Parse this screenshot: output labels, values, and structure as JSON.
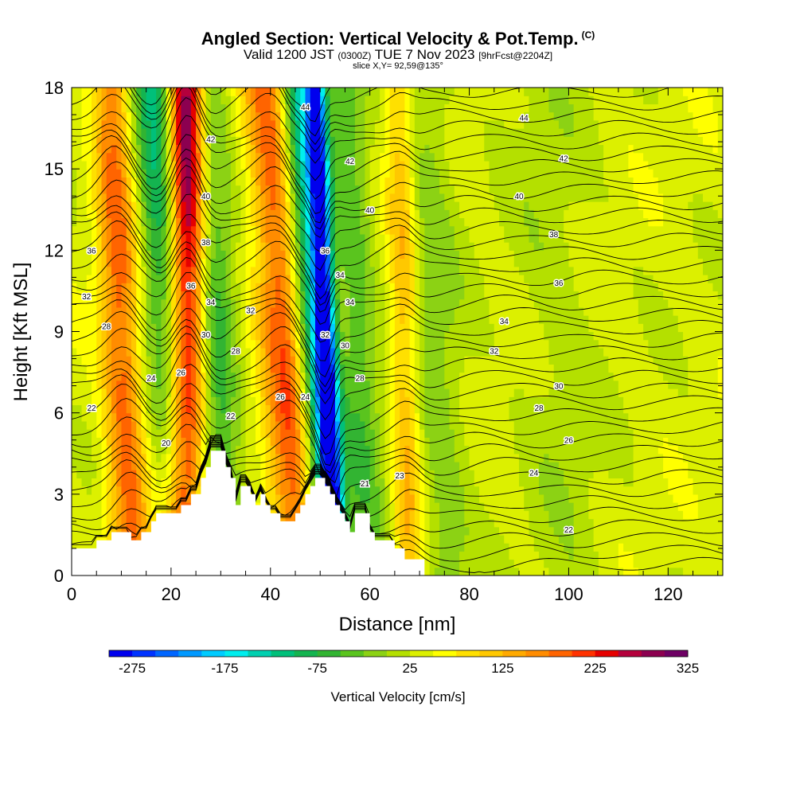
{
  "header": {
    "title": "Angled Section: Vertical Velocity & Pot.Temp.",
    "copyright": "(C)",
    "valid_prefix": "Valid 1200 JST",
    "valid_utc": "(0300Z)",
    "valid_date": "TUE 7 Nov 2023",
    "forecast": "[9hrFcst@2204Z]",
    "slice": "slice X,Y= 92,59@135°"
  },
  "chart_data": {
    "type": "heatmap",
    "xlabel": "Distance [nm]",
    "ylabel": "Height [Kft MSL]",
    "xlim": [
      0,
      131
    ],
    "ylim": [
      0,
      18
    ],
    "x_ticks": [
      0,
      20,
      40,
      60,
      80,
      100,
      120
    ],
    "y_ticks": [
      0,
      3,
      6,
      9,
      12,
      15,
      18
    ],
    "colorbar": {
      "label": "Vertical Velocity [cm/s]",
      "ticks": [
        -275,
        -175,
        -75,
        25,
        125,
        225,
        325
      ],
      "min": -300,
      "max": 325,
      "step": 25,
      "colors": [
        "#0000ee",
        "#0033ff",
        "#0066ff",
        "#0099ff",
        "#00ccff",
        "#00eeee",
        "#00d0b0",
        "#00c07a",
        "#14b450",
        "#32b432",
        "#5ac41e",
        "#8cd214",
        "#b4e000",
        "#dcf000",
        "#ffff00",
        "#ffe000",
        "#ffc800",
        "#ffaa00",
        "#ff8c00",
        "#ff6400",
        "#ff3200",
        "#e60000",
        "#b4003c",
        "#8c0050",
        "#6e0064"
      ]
    },
    "velocity_features": [
      {
        "x_surface": 12,
        "x_top": 8,
        "w_cm_s": 150,
        "width_nm": 4
      },
      {
        "x_surface": 24,
        "x_top": 17,
        "w_cm_s": -175,
        "width_nm": 5
      },
      {
        "x_surface": 23,
        "x_top": 23,
        "w_cm_s": 325,
        "width_nm": 4
      },
      {
        "x_surface": 31,
        "x_top": 27,
        "w_cm_s": -100,
        "width_nm": 4
      },
      {
        "x_surface": 46,
        "x_top": 40,
        "w_cm_s": 175,
        "width_nm": 5
      },
      {
        "x_surface": 52,
        "x_top": 45,
        "w_cm_s": -200,
        "width_nm": 4
      },
      {
        "x_surface": 53,
        "x_top": 49,
        "w_cm_s": -275,
        "width_nm": 2
      },
      {
        "x_surface": 60,
        "x_top": 55,
        "w_cm_s": -75,
        "width_nm": 4
      },
      {
        "x_surface": 68,
        "x_top": 66,
        "w_cm_s": 100,
        "width_nm": 3
      },
      {
        "x_surface": 75,
        "x_top": 70,
        "w_cm_s": -50,
        "width_nm": 6
      },
      {
        "x_surface": 100,
        "x_top": 95,
        "w_cm_s": -25,
        "width_nm": 8
      }
    ],
    "pot_temp_contours": {
      "levels": [
        22,
        24,
        26,
        28,
        30,
        32,
        34,
        36,
        38,
        40,
        42,
        44
      ],
      "labels": [
        {
          "text": "22",
          "x": 4,
          "y": 6.2
        },
        {
          "text": "20",
          "x": 19,
          "y": 4.9
        },
        {
          "text": "24",
          "x": 16,
          "y": 7.3
        },
        {
          "text": "26",
          "x": 22,
          "y": 7.5
        },
        {
          "text": "28",
          "x": 7,
          "y": 9.2
        },
        {
          "text": "32",
          "x": 3,
          "y": 10.3
        },
        {
          "text": "36",
          "x": 4,
          "y": 12.0
        },
        {
          "text": "30",
          "x": 27,
          "y": 8.9
        },
        {
          "text": "34",
          "x": 28,
          "y": 10.1
        },
        {
          "text": "36",
          "x": 24,
          "y": 10.7
        },
        {
          "text": "38",
          "x": 27,
          "y": 12.3
        },
        {
          "text": "40",
          "x": 27,
          "y": 14.0
        },
        {
          "text": "42",
          "x": 28,
          "y": 16.1
        },
        {
          "text": "22",
          "x": 32,
          "y": 5.9
        },
        {
          "text": "28",
          "x": 33,
          "y": 8.3
        },
        {
          "text": "32",
          "x": 36,
          "y": 9.8
        },
        {
          "text": "26",
          "x": 42,
          "y": 6.6
        },
        {
          "text": "24",
          "x": 47,
          "y": 6.6
        },
        {
          "text": "44",
          "x": 47,
          "y": 17.3
        },
        {
          "text": "32",
          "x": 51,
          "y": 8.9
        },
        {
          "text": "36",
          "x": 51,
          "y": 12.0
        },
        {
          "text": "34",
          "x": 54,
          "y": 11.1
        },
        {
          "text": "30",
          "x": 55,
          "y": 8.5
        },
        {
          "text": "34",
          "x": 56,
          "y": 10.1
        },
        {
          "text": "28",
          "x": 58,
          "y": 7.3
        },
        {
          "text": "42",
          "x": 56,
          "y": 15.3
        },
        {
          "text": "40",
          "x": 60,
          "y": 13.5
        },
        {
          "text": "21",
          "x": 59,
          "y": 3.4
        },
        {
          "text": "23",
          "x": 66,
          "y": 3.7
        },
        {
          "text": "44",
          "x": 91,
          "y": 16.9
        },
        {
          "text": "42",
          "x": 99,
          "y": 15.4
        },
        {
          "text": "40",
          "x": 90,
          "y": 14.0
        },
        {
          "text": "38",
          "x": 97,
          "y": 12.6
        },
        {
          "text": "36",
          "x": 98,
          "y": 10.8
        },
        {
          "text": "34",
          "x": 87,
          "y": 9.4
        },
        {
          "text": "32",
          "x": 85,
          "y": 8.3
        },
        {
          "text": "30",
          "x": 98,
          "y": 7.0
        },
        {
          "text": "28",
          "x": 94,
          "y": 6.2
        },
        {
          "text": "26",
          "x": 100,
          "y": 5.0
        },
        {
          "text": "24",
          "x": 93,
          "y": 3.8
        },
        {
          "text": "22",
          "x": 100,
          "y": 1.7
        }
      ]
    },
    "terrain": [
      [
        0,
        1
      ],
      [
        5,
        1
      ],
      [
        5,
        1.3
      ],
      [
        8,
        1.3
      ],
      [
        8,
        1.6
      ],
      [
        12,
        1.6
      ],
      [
        12,
        1.3
      ],
      [
        14,
        1.3
      ],
      [
        14,
        1.6
      ],
      [
        16,
        1.6
      ],
      [
        16,
        2
      ],
      [
        17,
        2
      ],
      [
        17,
        2.3
      ],
      [
        22,
        2.3
      ],
      [
        22,
        2.6
      ],
      [
        24,
        2.6
      ],
      [
        24,
        3
      ],
      [
        26,
        3
      ],
      [
        26,
        3.6
      ],
      [
        27,
        3.6
      ],
      [
        27,
        4
      ],
      [
        28,
        4
      ],
      [
        28,
        4.6
      ],
      [
        31,
        4.6
      ],
      [
        31,
        4
      ],
      [
        32,
        4
      ],
      [
        32,
        3.6
      ],
      [
        33,
        3.6
      ],
      [
        33,
        2.6
      ],
      [
        34,
        2.6
      ],
      [
        34,
        3.3
      ],
      [
        36,
        3.3
      ],
      [
        36,
        3
      ],
      [
        37,
        3
      ],
      [
        37,
        2.6
      ],
      [
        38,
        2.6
      ],
      [
        38,
        3
      ],
      [
        39,
        3
      ],
      [
        39,
        2.6
      ],
      [
        40,
        2.6
      ],
      [
        40,
        2.3
      ],
      [
        42,
        2.3
      ],
      [
        42,
        2
      ],
      [
        45,
        2
      ],
      [
        45,
        2.3
      ],
      [
        46,
        2.3
      ],
      [
        46,
        2.6
      ],
      [
        47,
        2.6
      ],
      [
        47,
        3
      ],
      [
        48,
        3
      ],
      [
        48,
        3.3
      ],
      [
        49,
        3.3
      ],
      [
        49,
        3.6
      ],
      [
        51,
        3.6
      ],
      [
        51,
        3.3
      ],
      [
        52,
        3.3
      ],
      [
        52,
        3
      ],
      [
        53,
        3
      ],
      [
        53,
        2.6
      ],
      [
        54,
        2.6
      ],
      [
        54,
        2.3
      ],
      [
        55,
        2.3
      ],
      [
        55,
        2
      ],
      [
        56,
        2
      ],
      [
        56,
        1.6
      ],
      [
        57,
        1.6
      ],
      [
        57,
        2.3
      ],
      [
        60,
        2.3
      ],
      [
        60,
        1.6
      ],
      [
        61,
        1.6
      ],
      [
        61,
        1.3
      ],
      [
        65,
        1.3
      ],
      [
        65,
        1
      ],
      [
        67,
        1
      ],
      [
        67,
        0.6
      ],
      [
        71,
        0.6
      ],
      [
        71,
        0
      ],
      [
        131,
        0
      ]
    ]
  }
}
